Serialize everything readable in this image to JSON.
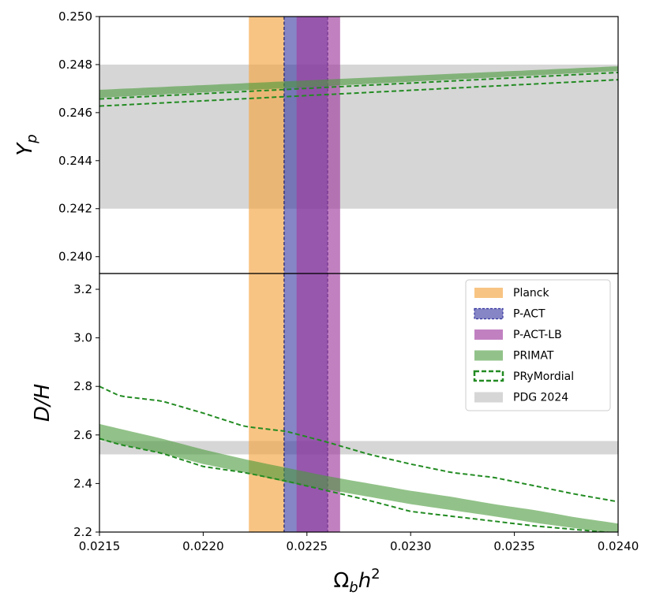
{
  "chart_data": {
    "type": "area",
    "shared_x": {
      "label": "Ω_b h^2",
      "label_base": "Ω",
      "label_sub": "b",
      "label_var": "h",
      "label_sup": "2",
      "lim": [
        0.0215,
        0.024
      ],
      "ticks": [
        0.0215,
        0.022,
        0.0225,
        0.023,
        0.0235,
        0.024
      ],
      "tick_labels": [
        "0.0215",
        "0.0220",
        "0.0225",
        "0.0230",
        "0.0235",
        "0.0240"
      ]
    },
    "vertical_bands": [
      {
        "name": "Planck",
        "x_range": [
          0.02222,
          0.02239
        ],
        "color": "#f5a540",
        "opacity": 0.65,
        "edge": "none"
      },
      {
        "name": "P-ACT",
        "x_range": [
          0.02239,
          0.0226
        ],
        "color": "#3535a0",
        "opacity": 0.6,
        "edge": "dashed"
      },
      {
        "name": "P-ACT-LB",
        "x_range": [
          0.02245,
          0.02266
        ],
        "color": "#a03ea0",
        "opacity": 0.65,
        "edge": "none"
      }
    ],
    "panels": [
      {
        "id": "top",
        "ylabel": "Y_p",
        "ylabel_base": "Y",
        "ylabel_sub": "p",
        "ylim": [
          0.2393,
          0.25
        ],
        "yticks": [
          0.24,
          0.242,
          0.244,
          0.246,
          0.248,
          0.25
        ],
        "ytick_labels": [
          "0.240",
          "0.242",
          "0.244",
          "0.246",
          "0.248",
          "0.250"
        ],
        "pdg_band": [
          0.242,
          0.248
        ],
        "primat": {
          "x": [
            0.0215,
            0.024
          ],
          "lower": [
            0.24662,
            0.24773
          ],
          "upper": [
            0.24695,
            0.24793
          ]
        },
        "prymordial": {
          "x": [
            0.0215,
            0.024
          ],
          "lower": [
            0.24627,
            0.24737
          ],
          "upper": [
            0.24657,
            0.24767
          ]
        }
      },
      {
        "id": "bottom",
        "ylabel": "D/H",
        "ylim": [
          2.2,
          3.265
        ],
        "yticks": [
          2.2,
          2.4,
          2.6,
          2.8,
          3.0,
          3.2
        ],
        "ytick_labels": [
          "2.2",
          "2.4",
          "2.6",
          "2.8",
          "3.0",
          "3.2"
        ],
        "pdg_band": [
          2.52,
          2.575
        ],
        "primat": {
          "x": [
            0.0215,
            0.0218,
            0.022,
            0.0222,
            0.0224,
            0.0226,
            0.0228,
            0.023,
            0.0232,
            0.0234,
            0.0236,
            0.0238,
            0.024
          ],
          "lower": [
            2.58,
            2.525,
            2.48,
            2.445,
            2.405,
            2.375,
            2.345,
            2.315,
            2.29,
            2.265,
            2.238,
            2.215,
            2.19
          ],
          "upper": [
            2.645,
            2.585,
            2.54,
            2.5,
            2.465,
            2.43,
            2.4,
            2.37,
            2.345,
            2.315,
            2.29,
            2.26,
            2.235
          ]
        },
        "prymordial": {
          "x": [
            0.0215,
            0.0216,
            0.0218,
            0.022,
            0.0222,
            0.0224,
            0.0226,
            0.0228,
            0.023,
            0.0232,
            0.0234,
            0.0236,
            0.0238,
            0.024
          ],
          "lower": [
            2.585,
            2.56,
            2.525,
            2.47,
            2.445,
            2.41,
            2.37,
            2.33,
            2.285,
            2.265,
            2.245,
            2.225,
            2.21,
            2.195
          ],
          "upper": [
            2.8,
            2.76,
            2.74,
            2.69,
            2.635,
            2.615,
            2.57,
            2.52,
            2.48,
            2.445,
            2.425,
            2.39,
            2.355,
            2.325
          ]
        }
      }
    ],
    "legend": {
      "placement": "upper-right of bottom panel",
      "entries": [
        {
          "label": "Planck",
          "style": "fill",
          "color": "#f5a540"
        },
        {
          "label": "P-ACT",
          "style": "fill-dashed",
          "color": "#3535a0"
        },
        {
          "label": "P-ACT-LB",
          "style": "fill",
          "color": "#a03ea0"
        },
        {
          "label": "PRIMAT",
          "style": "fill",
          "color": "#4a9a3a"
        },
        {
          "label": "PRyMordial",
          "style": "dashed",
          "color": "#228b22"
        },
        {
          "label": "PDG 2024",
          "style": "fill",
          "color": "#d6d6d6"
        }
      ]
    }
  },
  "colors": {
    "primat_fill": "#4a9a3a",
    "prymordial_line": "#228b22",
    "pdg_fill": "#d6d6d6",
    "p_act_edge": "#2a2a70"
  }
}
